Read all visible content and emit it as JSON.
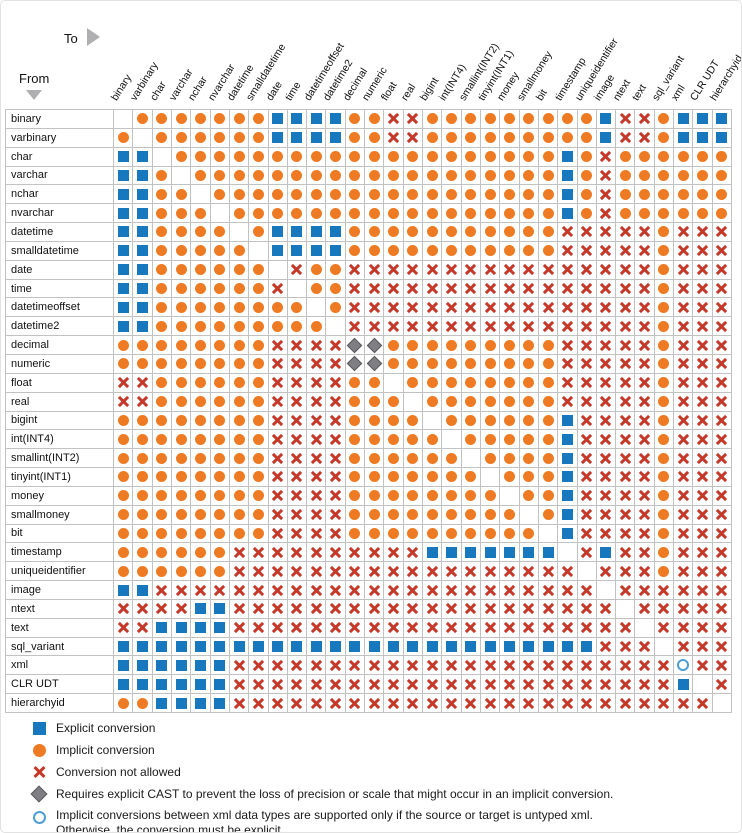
{
  "header": {
    "from_label": "From",
    "to_label": "To"
  },
  "colors": {
    "explicit_blue": "#1778BE",
    "implicit_orange": "#EE7B23",
    "not_allowed_red": "#C5392B",
    "cast_diamond_gray": "#7F7E83",
    "xml_open_circle_blue": "#4E9FD4",
    "grid_line": "#C2C2C2"
  },
  "chart_data": {
    "type": "heatmap",
    "legend_position": "bottom-left",
    "to_types": [
      "binary",
      "varbinary",
      "char",
      "varchar",
      "nchar",
      "nvarchar",
      "datetime",
      "smalldatetime",
      "date",
      "time",
      "datetimeoffset",
      "datetime2",
      "decimal",
      "numeric",
      "float",
      "real",
      "bigint",
      "int(INT4)",
      "smallint(INT2)",
      "tinyint(INT1)",
      "money",
      "smallmoney",
      "bit",
      "timestamp",
      "uniqueidentifier",
      "image",
      "ntext",
      "text",
      "sql_variant",
      "xml",
      "CLR UDT",
      "hierarchyid"
    ],
    "from_types": [
      "binary",
      "varbinary",
      "char",
      "varchar",
      "nchar",
      "nvarchar",
      "datetime",
      "smalldatetime",
      "date",
      "time",
      "datetimeoffset",
      "datetime2",
      "decimal",
      "numeric",
      "float",
      "real",
      "bigint",
      "int(INT4)",
      "smallint(INT2)",
      "tinyint(INT1)",
      "money",
      "smallmoney",
      "bit",
      "timestamp",
      "uniqueidentifier",
      "image",
      "ntext",
      "text",
      "sql_variant",
      "xml",
      "CLR UDT",
      "hierarchyid"
    ],
    "code_meanings": {
      "E": "Explicit conversion",
      "I": "Implicit conversion",
      "X": "Conversion not allowed",
      "D": "Requires explicit CAST to prevent the loss of precision or scale that might occur in an implicit conversion.",
      "O": "Implicit conversions between xml data types are supported only if the source or target is untyped xml. Otherwise, the conversion must be explicit.",
      ".": "same type (blank)"
    },
    "matrix": [
      ".IIIIIIIEEEEIIXXIIIIIIIIIEXXIEEE",
      "I.IIIIIIEEEEIIXXIIIIIIIIIEXXIEEE",
      "EE.IIIIIIIIIIIIIIIIIIIIEIXIIIIII",
      "EEI.IIIIIIIIIIIIIIIIIIIEIXIIIIII",
      "EEII.IIIIIIIIIIIIIIIIIIEIXIIIIII",
      "EEIII.IIIIIIIIIIIIIIIIIEIXIIIIII",
      "EEIIII.IEEEEIIIIIIIIIIIXXXXXIXXX",
      "EEIIIII.EEEEIIIIIIIIIIIXXXXXIXXX",
      "EEIIIIII.XIIXXXXXXXXXXXXXXXXIXXX",
      "EEIIIIIIX.IIXXXXXXXXXXXXXXXXIXXX",
      "EEIIIIIIII.IXXXXXXXXXXXXXXXXIXXX",
      "EEIIIIIIIII.XXXXXXXXXXXXXXXXIXXX",
      "IIIIIIIIXXXXDDIIIIIIIIIXXXXXIXXX",
      "IIIIIIIIXXXXDDIIIIIIIIIXXXXXIXXX",
      "XXIIIIIIXXXXII.IIIIIIIIXXXXXIXXX",
      "XXIIIIIIXXXXIII.IIIIIIIXXXXXIXXX",
      "IIIIIIIIXXXXIIII.IIIIIIEXXXXIXXX",
      "IIIIIIIIXXXXIIIII.IIIIIEXXXXIXXX",
      "IIIIIIIIXXXXIIIIII.IIIIEXXXXIXXX",
      "IIIIIIIIXXXXIIIIIII.IIIEXXXXIXXX",
      "IIIIIIIIXXXXIIIIIIII.IIEXXXXIXXX",
      "IIIIIIIIXXXXIIIIIIIII.IEXXXXIXXX",
      "IIIIIIIIXXXXIIIIIIIIII.EXXXXIXXX",
      "IIIIIIXXXXXXXXXXEEEEEEE.XEXXIXXX",
      "IIIIIIXXXXXXXXXXXXXXXXXX.XXXIXXX",
      "EEXXXXXXXXXXXXXXXXXXXXXXX.XXXXXX",
      "XXXXEEXXXXXXXXXXXXXXXXXXXX.XXXXX",
      "XXEEEEXXXXXXXXXXXXXXXXXXXXX.XXXX",
      "EEEEEEEEEEEEEEEEEEEEEEEEEXXX.XXX",
      "EEEEEEXXXXXXXXXXXXXXXXXXXXXXXOXX",
      "EEEEEEXXXXXXXXXXXXXXXXXXXXXXXE.X",
      "IIEEEEXXXXXXXXXXXXXXXXXXXXXXXXX."
    ]
  },
  "legend": {
    "explicit": "Explicit conversion",
    "implicit": "Implicit conversion",
    "not_allowed": "Conversion not allowed",
    "cast": "Requires explicit CAST to prevent the loss of precision or scale that might occur in an implicit conversion.",
    "xml_line1": "Implicit conversions between xml data types are supported only if the source or target is untyped xml.",
    "xml_line2": "Otherwise, the conversion must be explicit."
  }
}
